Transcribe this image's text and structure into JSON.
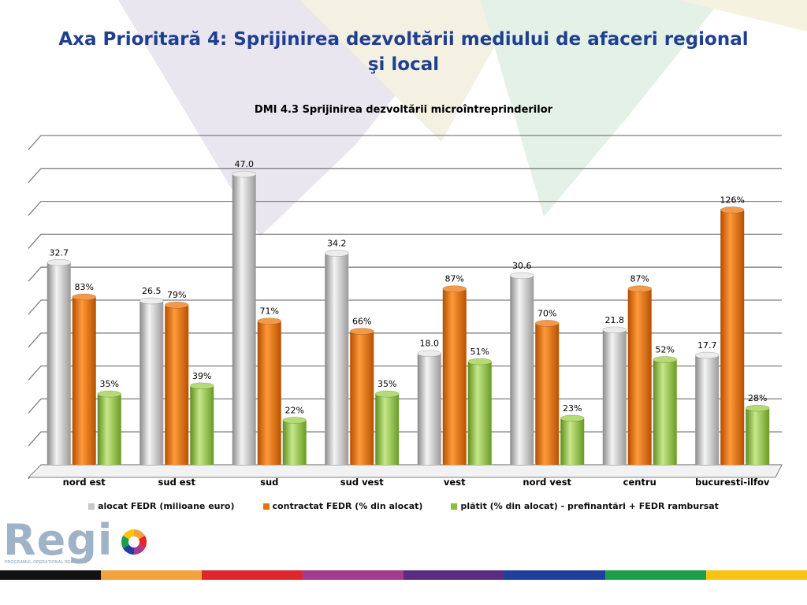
{
  "slide": {
    "title": "Axa Prioritară 4: Sprijinirea dezvoltării mediului de afaceri regional şi  local"
  },
  "logo": {
    "text": "Regi",
    "caption": "PROGRAMUL OPERAȚIONAL REGIONAL"
  },
  "colors": {
    "title": "#1f3f8f",
    "series": [
      "#c8c8c8",
      "#e8700a",
      "#8cbd3c"
    ],
    "strip": [
      "#111111",
      "#f4a23a",
      "#e3262e",
      "#a53a8e",
      "#5a2d82",
      "#1f3f9e",
      "#1aa04a",
      "#f9c412"
    ]
  },
  "chart_data": {
    "type": "bar",
    "title": "DMI 4.3 Sprijinirea dezvoltării microîntreprinderilor",
    "categories": [
      "nord est",
      "sud est",
      "sud",
      "sud vest",
      "vest",
      "nord vest",
      "centru",
      "bucuresti-ilfov"
    ],
    "series": [
      {
        "name": "alocat FEDR (milioane euro)",
        "values": [
          32.7,
          26.5,
          47.0,
          34.2,
          18.0,
          30.6,
          21.8,
          17.7
        ],
        "labels": [
          "32.7",
          "26.5",
          "47.0",
          "34.2",
          "18.0",
          "30.6",
          "21.8",
          "17.7"
        ]
      },
      {
        "name": "contractat FEDR (% din alocat)",
        "values": [
          83,
          79,
          71,
          66,
          87,
          70,
          87,
          126
        ],
        "labels": [
          "83%",
          "79%",
          "71%",
          "66%",
          "87%",
          "70%",
          "87%",
          "126%"
        ]
      },
      {
        "name": "plătit (% din alocat) - prefinantări + FEDR rambursat",
        "values": [
          35,
          39,
          22,
          35,
          51,
          23,
          52,
          28
        ],
        "labels": [
          "35%",
          "39%",
          "22%",
          "35%",
          "51%",
          "23%",
          "52%",
          "28%"
        ]
      }
    ],
    "three_d": true,
    "grid": true,
    "legend_position": "bottom"
  }
}
